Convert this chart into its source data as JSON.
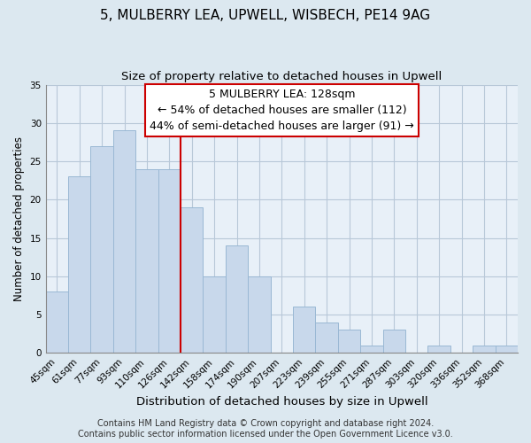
{
  "title": "5, MULBERRY LEA, UPWELL, WISBECH, PE14 9AG",
  "subtitle": "Size of property relative to detached houses in Upwell",
  "xlabel": "Distribution of detached houses by size in Upwell",
  "ylabel": "Number of detached properties",
  "bar_labels": [
    "45sqm",
    "61sqm",
    "77sqm",
    "93sqm",
    "110sqm",
    "126sqm",
    "142sqm",
    "158sqm",
    "174sqm",
    "190sqm",
    "207sqm",
    "223sqm",
    "239sqm",
    "255sqm",
    "271sqm",
    "287sqm",
    "303sqm",
    "320sqm",
    "336sqm",
    "352sqm",
    "368sqm"
  ],
  "bar_values": [
    8,
    23,
    27,
    29,
    24,
    24,
    19,
    10,
    14,
    10,
    0,
    6,
    4,
    3,
    1,
    3,
    0,
    1,
    0,
    1,
    1
  ],
  "bar_color": "#c8d8eb",
  "bar_edge_color": "#9ab8d4",
  "vline_x": 5.5,
  "vline_color": "#cc0000",
  "ylim": [
    0,
    35
  ],
  "yticks": [
    0,
    5,
    10,
    15,
    20,
    25,
    30,
    35
  ],
  "annotation_text_line1": "5 MULBERRY LEA: 128sqm",
  "annotation_text_line2": "← 54% of detached houses are smaller (112)",
  "annotation_text_line3": "44% of semi-detached houses are larger (91) →",
  "footer_line1": "Contains HM Land Registry data © Crown copyright and database right 2024.",
  "footer_line2": "Contains public sector information licensed under the Open Government Licence v3.0.",
  "background_color": "#dce8f0",
  "plot_background_color": "#e8f0f8",
  "grid_color": "#b8c8d8",
  "title_fontsize": 11,
  "subtitle_fontsize": 9.5,
  "xlabel_fontsize": 9.5,
  "ylabel_fontsize": 8.5,
  "tick_fontsize": 7.5,
  "annotation_fontsize": 9,
  "footer_fontsize": 7
}
